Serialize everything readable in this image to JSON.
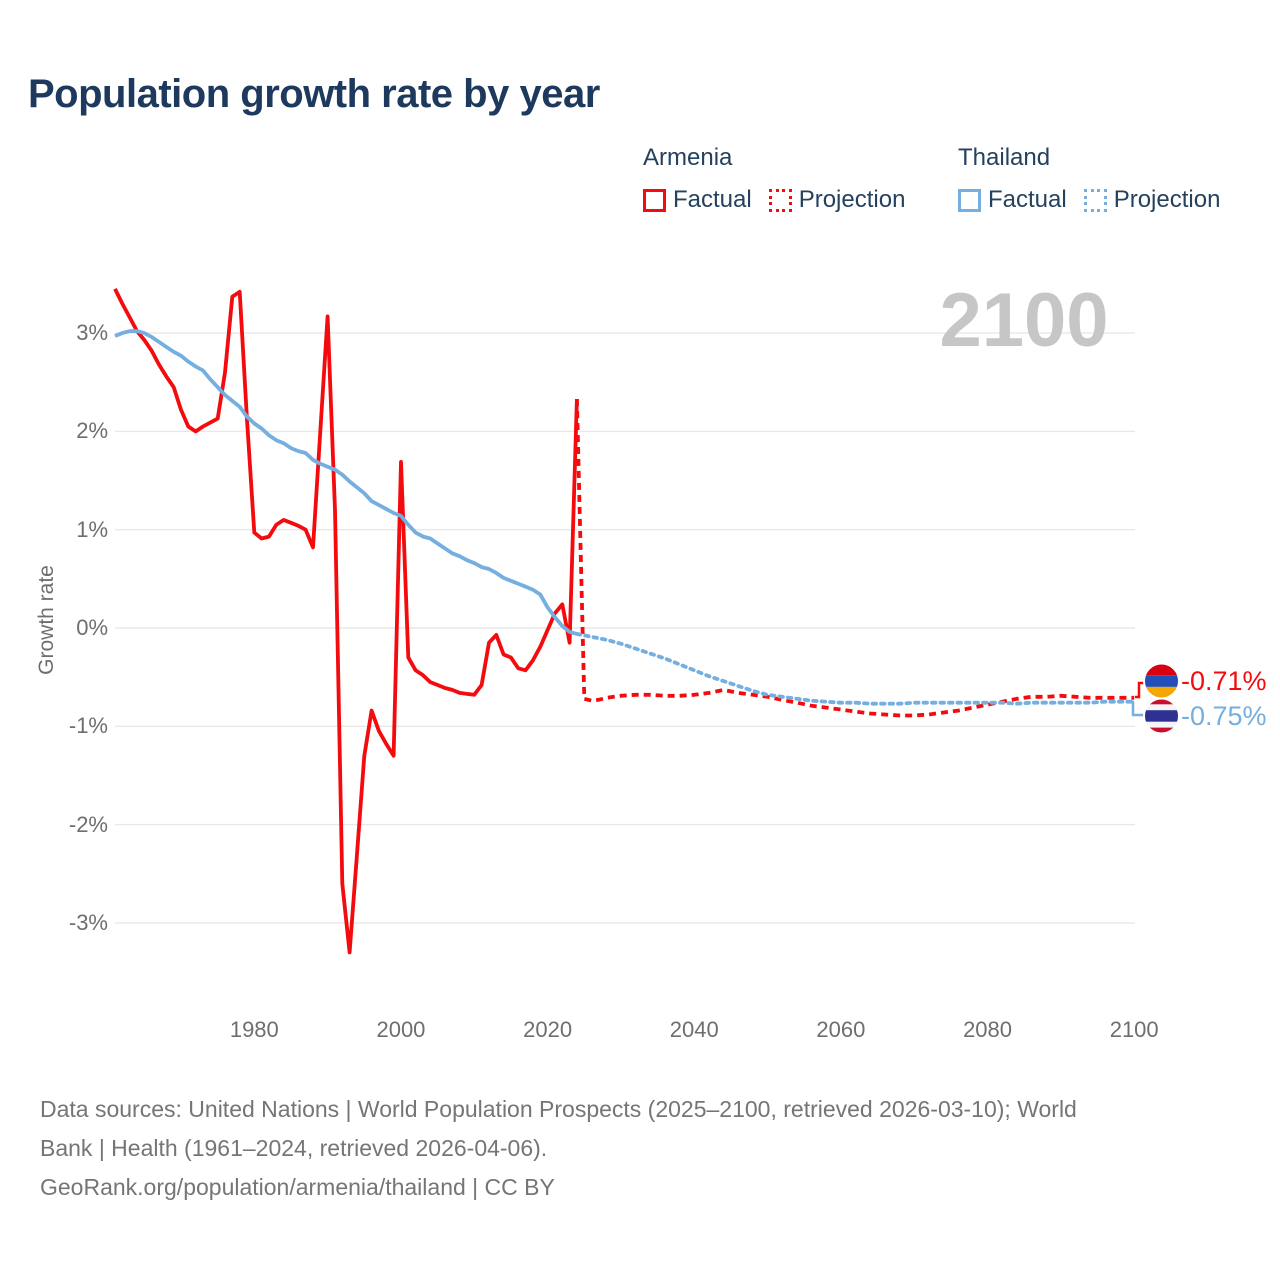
{
  "title": "Population growth rate by year",
  "watermark": "2100",
  "colors": {
    "armenia": "#f40b0e",
    "thailand": "#74afdf",
    "title_text": "#1d3a5e",
    "legend_text": "#24415e",
    "axis_text": "#6e6e6e",
    "grid": "#e8e8e8",
    "watermark": "#c6c6c6",
    "footer_text": "#757575"
  },
  "legend": {
    "armenia": {
      "country": "Armenia",
      "factual": "Factual",
      "projection": "Projection"
    },
    "thailand": {
      "country": "Thailand",
      "factual": "Factual",
      "projection": "Projection"
    }
  },
  "end_labels": {
    "armenia": {
      "value": "-0.71%",
      "flag": "armenia-flag"
    },
    "thailand": {
      "value": "-0.75%",
      "flag": "thailand-flag"
    }
  },
  "footer": {
    "line1": "Data sources: United Nations | World Population Prospects (2025–2100, retrieved 2026-03-10); World",
    "line2": "Bank | Health (1961–2024, retrieved 2026-04-06).",
    "line3": "GeoRank.org/population/armenia/thailand | CC BY"
  },
  "chart_data": {
    "type": "line",
    "title": "Population growth rate by year",
    "ylabel": "Growth rate",
    "xlim": [
      1961,
      2100
    ],
    "ylim": [
      -3.6,
      3.6
    ],
    "grid": true,
    "legend_position": "top-right",
    "y_ticks": [
      {
        "value": 3,
        "label": "3%"
      },
      {
        "value": 2,
        "label": "2%"
      },
      {
        "value": 1,
        "label": "1%"
      },
      {
        "value": 0,
        "label": "0%"
      },
      {
        "value": -1,
        "label": "-1%"
      },
      {
        "value": -2,
        "label": "-2%"
      },
      {
        "value": -3,
        "label": "-3%"
      }
    ],
    "x_ticks": [
      1980,
      2000,
      2020,
      2040,
      2060,
      2080,
      2100
    ],
    "series": [
      {
        "name": "Armenia Factual",
        "color_key": "armenia",
        "style": "solid",
        "points": [
          [
            1961,
            3.45
          ],
          [
            1962,
            3.3
          ],
          [
            1963,
            3.16
          ],
          [
            1964,
            3.02
          ],
          [
            1965,
            2.93
          ],
          [
            1966,
            2.82
          ],
          [
            1967,
            2.68
          ],
          [
            1968,
            2.56
          ],
          [
            1969,
            2.45
          ],
          [
            1970,
            2.22
          ],
          [
            1971,
            2.05
          ],
          [
            1972,
            2.0
          ],
          [
            1973,
            2.05
          ],
          [
            1974,
            2.09
          ],
          [
            1975,
            2.13
          ],
          [
            1976,
            2.6
          ],
          [
            1977,
            3.37
          ],
          [
            1978,
            3.42
          ],
          [
            1979,
            2.12
          ],
          [
            1980,
            0.97
          ],
          [
            1981,
            0.91
          ],
          [
            1982,
            0.93
          ],
          [
            1983,
            1.05
          ],
          [
            1984,
            1.1
          ],
          [
            1985,
            1.07
          ],
          [
            1986,
            1.04
          ],
          [
            1987,
            1.0
          ],
          [
            1988,
            0.82
          ],
          [
            1989,
            2.0
          ],
          [
            1990,
            3.17
          ],
          [
            1991,
            1.2
          ],
          [
            1992,
            -2.6
          ],
          [
            1993,
            -3.3
          ],
          [
            1994,
            -2.3
          ],
          [
            1995,
            -1.3
          ],
          [
            1996,
            -0.84
          ],
          [
            1997,
            -1.05
          ],
          [
            1998,
            -1.18
          ],
          [
            1999,
            -1.3
          ],
          [
            2000,
            1.69
          ],
          [
            2001,
            -0.3
          ],
          [
            2002,
            -0.43
          ],
          [
            2003,
            -0.48
          ],
          [
            2004,
            -0.55
          ],
          [
            2005,
            -0.58
          ],
          [
            2006,
            -0.61
          ],
          [
            2007,
            -0.63
          ],
          [
            2008,
            -0.66
          ],
          [
            2009,
            -0.67
          ],
          [
            2010,
            -0.68
          ],
          [
            2011,
            -0.58
          ],
          [
            2012,
            -0.15
          ],
          [
            2013,
            -0.07
          ],
          [
            2014,
            -0.27
          ],
          [
            2015,
            -0.3
          ],
          [
            2016,
            -0.41
          ],
          [
            2017,
            -0.43
          ],
          [
            2018,
            -0.33
          ],
          [
            2019,
            -0.19
          ],
          [
            2020,
            -0.02
          ],
          [
            2021,
            0.15
          ],
          [
            2022,
            0.24
          ],
          [
            2023,
            -0.15
          ],
          [
            2024,
            2.33
          ]
        ]
      },
      {
        "name": "Armenia Projection",
        "color_key": "armenia",
        "style": "dashed",
        "points": [
          [
            2024,
            2.33
          ],
          [
            2025,
            -0.72
          ],
          [
            2026,
            -0.74
          ],
          [
            2027,
            -0.73
          ],
          [
            2028,
            -0.71
          ],
          [
            2029,
            -0.7
          ],
          [
            2030,
            -0.69
          ],
          [
            2032,
            -0.68
          ],
          [
            2034,
            -0.68
          ],
          [
            2036,
            -0.69
          ],
          [
            2038,
            -0.69
          ],
          [
            2040,
            -0.68
          ],
          [
            2042,
            -0.66
          ],
          [
            2044,
            -0.63
          ],
          [
            2046,
            -0.66
          ],
          [
            2048,
            -0.68
          ],
          [
            2050,
            -0.7
          ],
          [
            2052,
            -0.73
          ],
          [
            2054,
            -0.76
          ],
          [
            2056,
            -0.79
          ],
          [
            2058,
            -0.81
          ],
          [
            2060,
            -0.83
          ],
          [
            2062,
            -0.85
          ],
          [
            2064,
            -0.87
          ],
          [
            2066,
            -0.88
          ],
          [
            2068,
            -0.89
          ],
          [
            2070,
            -0.89
          ],
          [
            2072,
            -0.88
          ],
          [
            2074,
            -0.86
          ],
          [
            2076,
            -0.84
          ],
          [
            2078,
            -0.81
          ],
          [
            2080,
            -0.78
          ],
          [
            2082,
            -0.75
          ],
          [
            2084,
            -0.72
          ],
          [
            2086,
            -0.7
          ],
          [
            2088,
            -0.7
          ],
          [
            2090,
            -0.69
          ],
          [
            2092,
            -0.7
          ],
          [
            2094,
            -0.71
          ],
          [
            2096,
            -0.71
          ],
          [
            2098,
            -0.71
          ],
          [
            2100,
            -0.71
          ]
        ]
      },
      {
        "name": "Thailand Factual",
        "color_key": "thailand",
        "style": "solid",
        "points": [
          [
            1961,
            2.97
          ],
          [
            1962,
            3.0
          ],
          [
            1963,
            3.02
          ],
          [
            1964,
            3.02
          ],
          [
            1965,
            3.0
          ],
          [
            1966,
            2.96
          ],
          [
            1967,
            2.91
          ],
          [
            1968,
            2.86
          ],
          [
            1969,
            2.81
          ],
          [
            1970,
            2.77
          ],
          [
            1971,
            2.71
          ],
          [
            1972,
            2.66
          ],
          [
            1973,
            2.62
          ],
          [
            1974,
            2.53
          ],
          [
            1975,
            2.45
          ],
          [
            1976,
            2.37
          ],
          [
            1977,
            2.31
          ],
          [
            1978,
            2.25
          ],
          [
            1979,
            2.15
          ],
          [
            1980,
            2.08
          ],
          [
            1981,
            2.03
          ],
          [
            1982,
            1.96
          ],
          [
            1983,
            1.91
          ],
          [
            1984,
            1.88
          ],
          [
            1985,
            1.83
          ],
          [
            1986,
            1.8
          ],
          [
            1987,
            1.78
          ],
          [
            1988,
            1.71
          ],
          [
            1989,
            1.67
          ],
          [
            1990,
            1.64
          ],
          [
            1991,
            1.61
          ],
          [
            1992,
            1.56
          ],
          [
            1993,
            1.49
          ],
          [
            1994,
            1.43
          ],
          [
            1995,
            1.37
          ],
          [
            1996,
            1.29
          ],
          [
            1997,
            1.25
          ],
          [
            1998,
            1.21
          ],
          [
            1999,
            1.17
          ],
          [
            2000,
            1.14
          ],
          [
            2001,
            1.05
          ],
          [
            2002,
            0.97
          ],
          [
            2003,
            0.93
          ],
          [
            2004,
            0.91
          ],
          [
            2005,
            0.86
          ],
          [
            2006,
            0.81
          ],
          [
            2007,
            0.76
          ],
          [
            2008,
            0.73
          ],
          [
            2009,
            0.69
          ],
          [
            2010,
            0.66
          ],
          [
            2011,
            0.62
          ],
          [
            2012,
            0.6
          ],
          [
            2013,
            0.56
          ],
          [
            2014,
            0.51
          ],
          [
            2015,
            0.48
          ],
          [
            2016,
            0.45
          ],
          [
            2017,
            0.42
          ],
          [
            2018,
            0.39
          ],
          [
            2019,
            0.34
          ],
          [
            2020,
            0.21
          ],
          [
            2021,
            0.11
          ],
          [
            2022,
            0.02
          ],
          [
            2023,
            -0.04
          ],
          [
            2024,
            -0.06
          ]
        ]
      },
      {
        "name": "Thailand Projection",
        "color_key": "thailand",
        "style": "dotted",
        "points": [
          [
            2024,
            -0.06
          ],
          [
            2026,
            -0.09
          ],
          [
            2028,
            -0.12
          ],
          [
            2030,
            -0.16
          ],
          [
            2032,
            -0.21
          ],
          [
            2034,
            -0.26
          ],
          [
            2036,
            -0.31
          ],
          [
            2038,
            -0.37
          ],
          [
            2040,
            -0.43
          ],
          [
            2042,
            -0.49
          ],
          [
            2044,
            -0.54
          ],
          [
            2046,
            -0.59
          ],
          [
            2048,
            -0.64
          ],
          [
            2050,
            -0.68
          ],
          [
            2052,
            -0.7
          ],
          [
            2054,
            -0.72
          ],
          [
            2056,
            -0.74
          ],
          [
            2058,
            -0.75
          ],
          [
            2060,
            -0.76
          ],
          [
            2062,
            -0.76
          ],
          [
            2064,
            -0.77
          ],
          [
            2066,
            -0.77
          ],
          [
            2068,
            -0.77
          ],
          [
            2070,
            -0.76
          ],
          [
            2072,
            -0.76
          ],
          [
            2074,
            -0.76
          ],
          [
            2076,
            -0.76
          ],
          [
            2078,
            -0.76
          ],
          [
            2080,
            -0.76
          ],
          [
            2082,
            -0.76
          ],
          [
            2084,
            -0.77
          ],
          [
            2086,
            -0.76
          ],
          [
            2088,
            -0.76
          ],
          [
            2090,
            -0.76
          ],
          [
            2092,
            -0.76
          ],
          [
            2094,
            -0.76
          ],
          [
            2096,
            -0.75
          ],
          [
            2098,
            -0.75
          ],
          [
            2100,
            -0.75
          ]
        ]
      }
    ]
  }
}
